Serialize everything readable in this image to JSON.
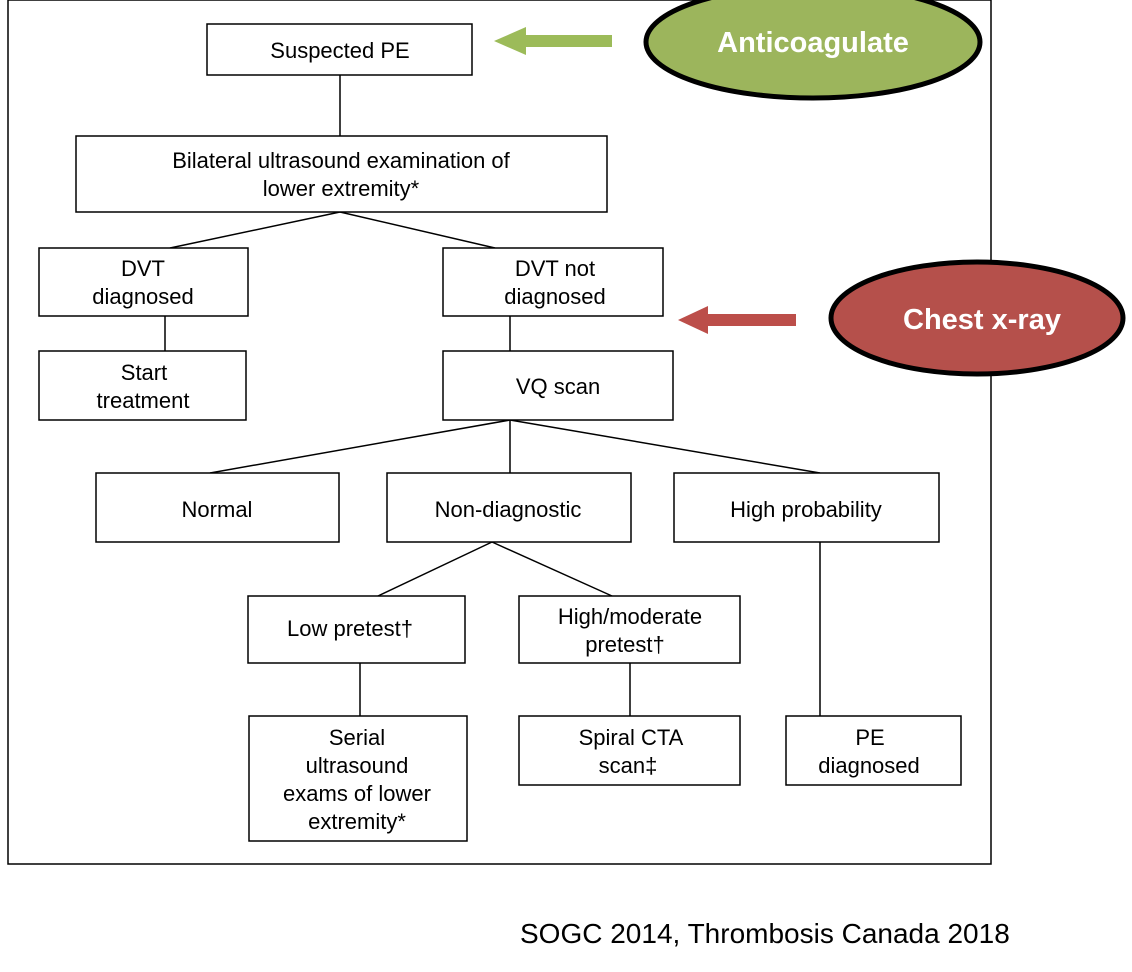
{
  "flowchart": {
    "suspected_pe": "Suspected PE",
    "ultrasound": [
      "Bilateral ultrasound examination of",
      "lower extremity*"
    ],
    "dvt_diagnosed": [
      "DVT",
      "diagnosed"
    ],
    "dvt_not_diagnosed": [
      "DVT not",
      "diagnosed"
    ],
    "start_treatment": [
      "Start",
      "treatment"
    ],
    "vq_scan": "VQ scan",
    "normal": "Normal",
    "non_diagnostic": "Non-diagnostic",
    "high_probability": "High probability",
    "low_pretest": "Low pretest†",
    "high_moderate_pretest": [
      "High/moderate",
      "pretest†"
    ],
    "serial_ultrasound": [
      "Serial",
      "ultrasound",
      "exams of lower",
      "extremity*"
    ],
    "spiral_cta": [
      "Spiral CTA",
      "scan‡"
    ],
    "pe_diagnosed": [
      "PE",
      "diagnosed"
    ]
  },
  "annotations": {
    "anticoagulate": "Anticoagulate",
    "chest_xray": "Chest x-ray"
  },
  "colors": {
    "anticoagulate_fill": "#9cb55c",
    "anticoagulate_arrow": "#9cbb59",
    "chest_xray_fill": "#b5504b",
    "chest_xray_arrow": "#bc4e4a"
  },
  "source": "SOGC 2014, Thrombosis Canada 2018"
}
